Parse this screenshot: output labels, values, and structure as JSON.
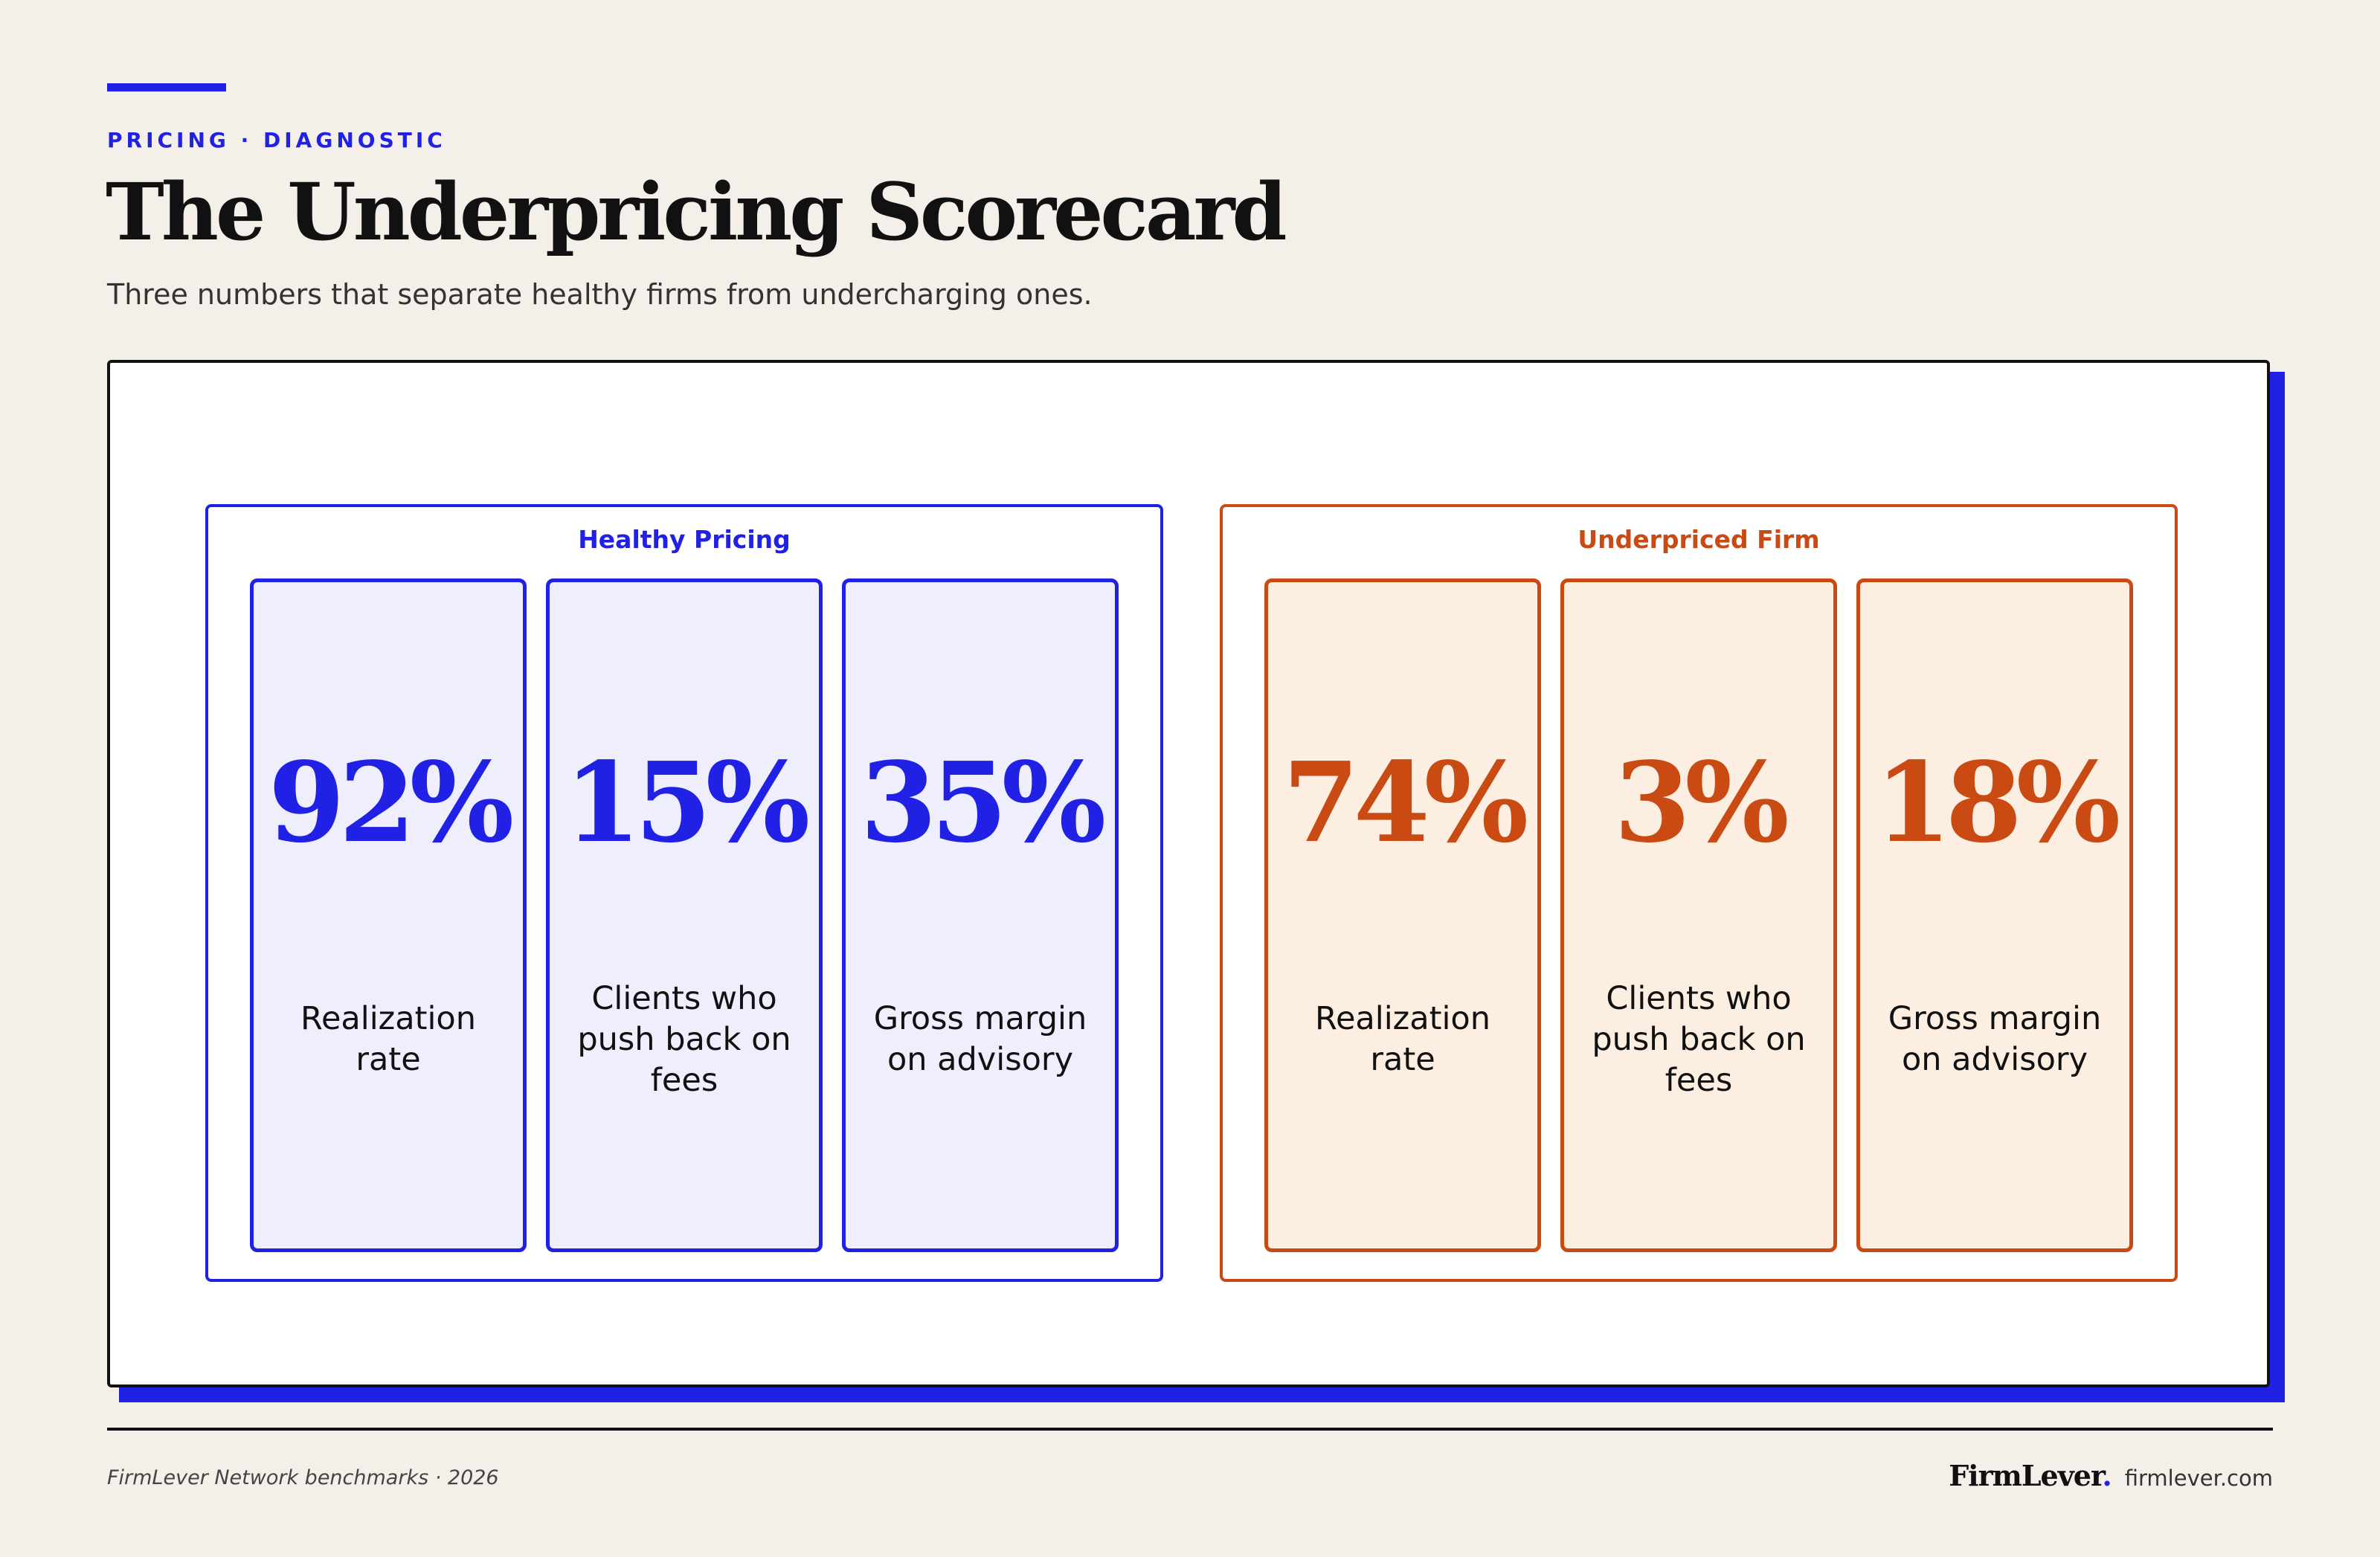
{
  "header": {
    "eyebrow": "PRICING · DIAGNOSTIC",
    "title": "The Underpricing Scorecard",
    "subtitle": "Three numbers that separate healthy firms from undercharging ones."
  },
  "groups": [
    {
      "label": "Healthy Pricing",
      "color": "#2121e6",
      "tiles": [
        {
          "value": "92%",
          "label": "Realization rate"
        },
        {
          "value": "15%",
          "label": "Clients who push back on fees"
        },
        {
          "value": "35%",
          "label": "Gross margin on advisory"
        }
      ]
    },
    {
      "label": "Underpriced Firm",
      "color": "#c94a12",
      "tiles": [
        {
          "value": "74%",
          "label": "Realization rate"
        },
        {
          "value": "3%",
          "label": "Clients who push back on fees"
        },
        {
          "value": "18%",
          "label": "Gross margin on advisory"
        }
      ]
    }
  ],
  "footer": {
    "source": "FirmLever Network benchmarks · 2026",
    "brand": "FirmLever",
    "brand_dot": ".",
    "url": "firmlever.com"
  },
  "colors": {
    "accent": "#2121e6",
    "warning": "#c94a12",
    "background": "#f4f0e9"
  }
}
